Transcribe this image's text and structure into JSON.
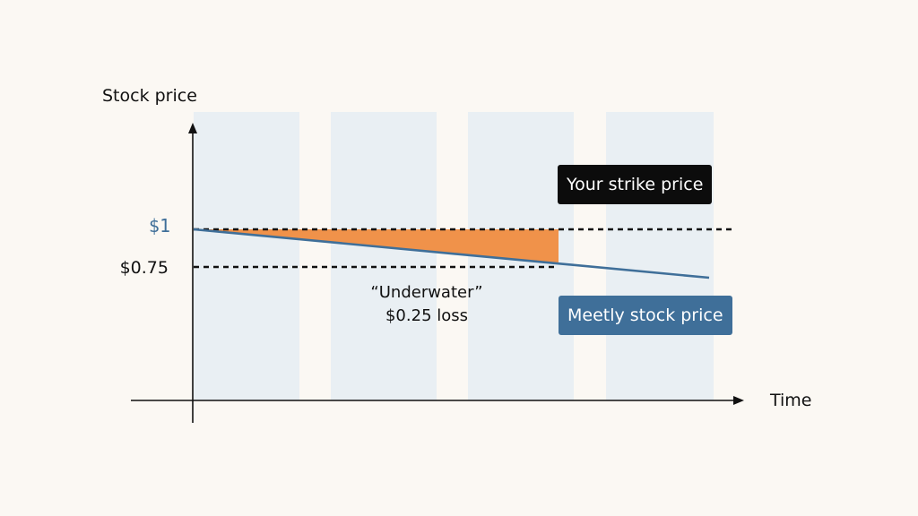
{
  "diagram": {
    "y_axis_title": "Stock price",
    "x_axis_title": "Time",
    "strike_tick_label": "$1",
    "stock_tick_label": "$0.75",
    "strike_line_label": "Your strike price",
    "stock_line_label": "Meetly stock price",
    "underwater_title": "“Underwater”",
    "underwater_loss": "$0.25 loss",
    "strike_value": 1,
    "stock_value_at_marker": 0.75
  },
  "colors": {
    "background": "#fbf8f3",
    "column_shade": "#e9eff3",
    "loss_fill": "#f0924a",
    "stock_line": "#3f6f99",
    "strike_tag": "#0c0c0c",
    "stock_tag": "#3f6f99",
    "axis": "#111111"
  }
}
